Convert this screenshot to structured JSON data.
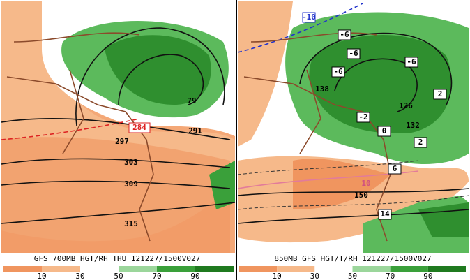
{
  "left_panel": {
    "title": "GFS 700MB HGT/RH THU 121227/1500V027",
    "contour_labels": [
      "284",
      "291",
      "297",
      "303",
      "309",
      "315",
      "79"
    ]
  },
  "right_panel": {
    "title": "850MB GFS HGT/T/RH 121227/1500V027",
    "contour_labels": [
      "-10",
      "-6",
      "-6",
      "-6",
      "-6",
      "-2",
      "0",
      "2",
      "2",
      "6",
      "10",
      "14",
      "138",
      "132",
      "126",
      "150"
    ]
  },
  "colorbar": {
    "labels": [
      "10",
      "30",
      "50",
      "70",
      "90"
    ]
  }
}
